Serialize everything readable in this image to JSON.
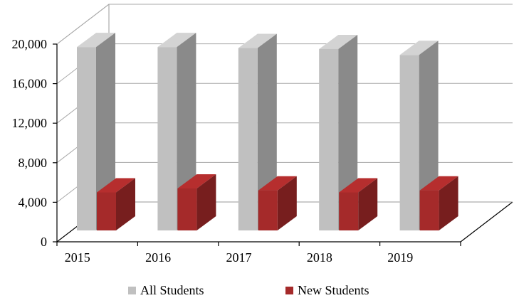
{
  "chart_data": {
    "type": "bar",
    "categories": [
      "2015",
      "2016",
      "2017",
      "2018",
      "2019"
    ],
    "series": [
      {
        "name": "All Students",
        "values": [
          19700,
          19700,
          19600,
          19500,
          18900
        ],
        "color": "#c0c0c0"
      },
      {
        "name": "New Students",
        "values": [
          5000,
          5400,
          5200,
          5000,
          5200
        ],
        "color": "#a52a2a"
      }
    ],
    "ylim": [
      0,
      20000
    ],
    "y_ticks": [
      "0",
      "4,000",
      "8,000",
      "12,000",
      "16,000",
      "20,000"
    ],
    "y_tick_values": [
      0,
      4000,
      8000,
      12000,
      16000,
      20000
    ],
    "grid": true,
    "legend_position": "bottom",
    "style": "3d-bar"
  }
}
